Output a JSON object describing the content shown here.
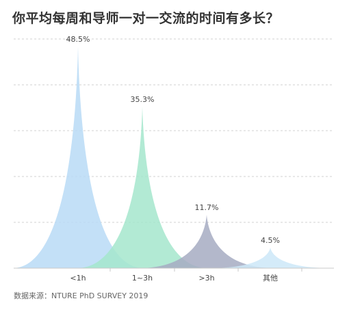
{
  "title": "你平均每周和导师一对一交流的时间有多长？",
  "source": "数据来源：NTURE PhD SURVEY 2019",
  "chart_data": {
    "type": "area",
    "shape": "peaked",
    "categories": [
      "<1h",
      "1~3h",
      ">3h",
      "其他"
    ],
    "values": [
      48.5,
      35.3,
      11.7,
      4.5
    ],
    "value_labels": [
      "48.5%",
      "35.3%",
      "11.7%",
      "4.5%"
    ],
    "colors": [
      "#b9daf6",
      "#a5e6cc",
      "#a6abc2",
      "#cde7f8"
    ],
    "ylim": [
      0,
      48.5
    ],
    "grid": true,
    "legend": "none"
  }
}
